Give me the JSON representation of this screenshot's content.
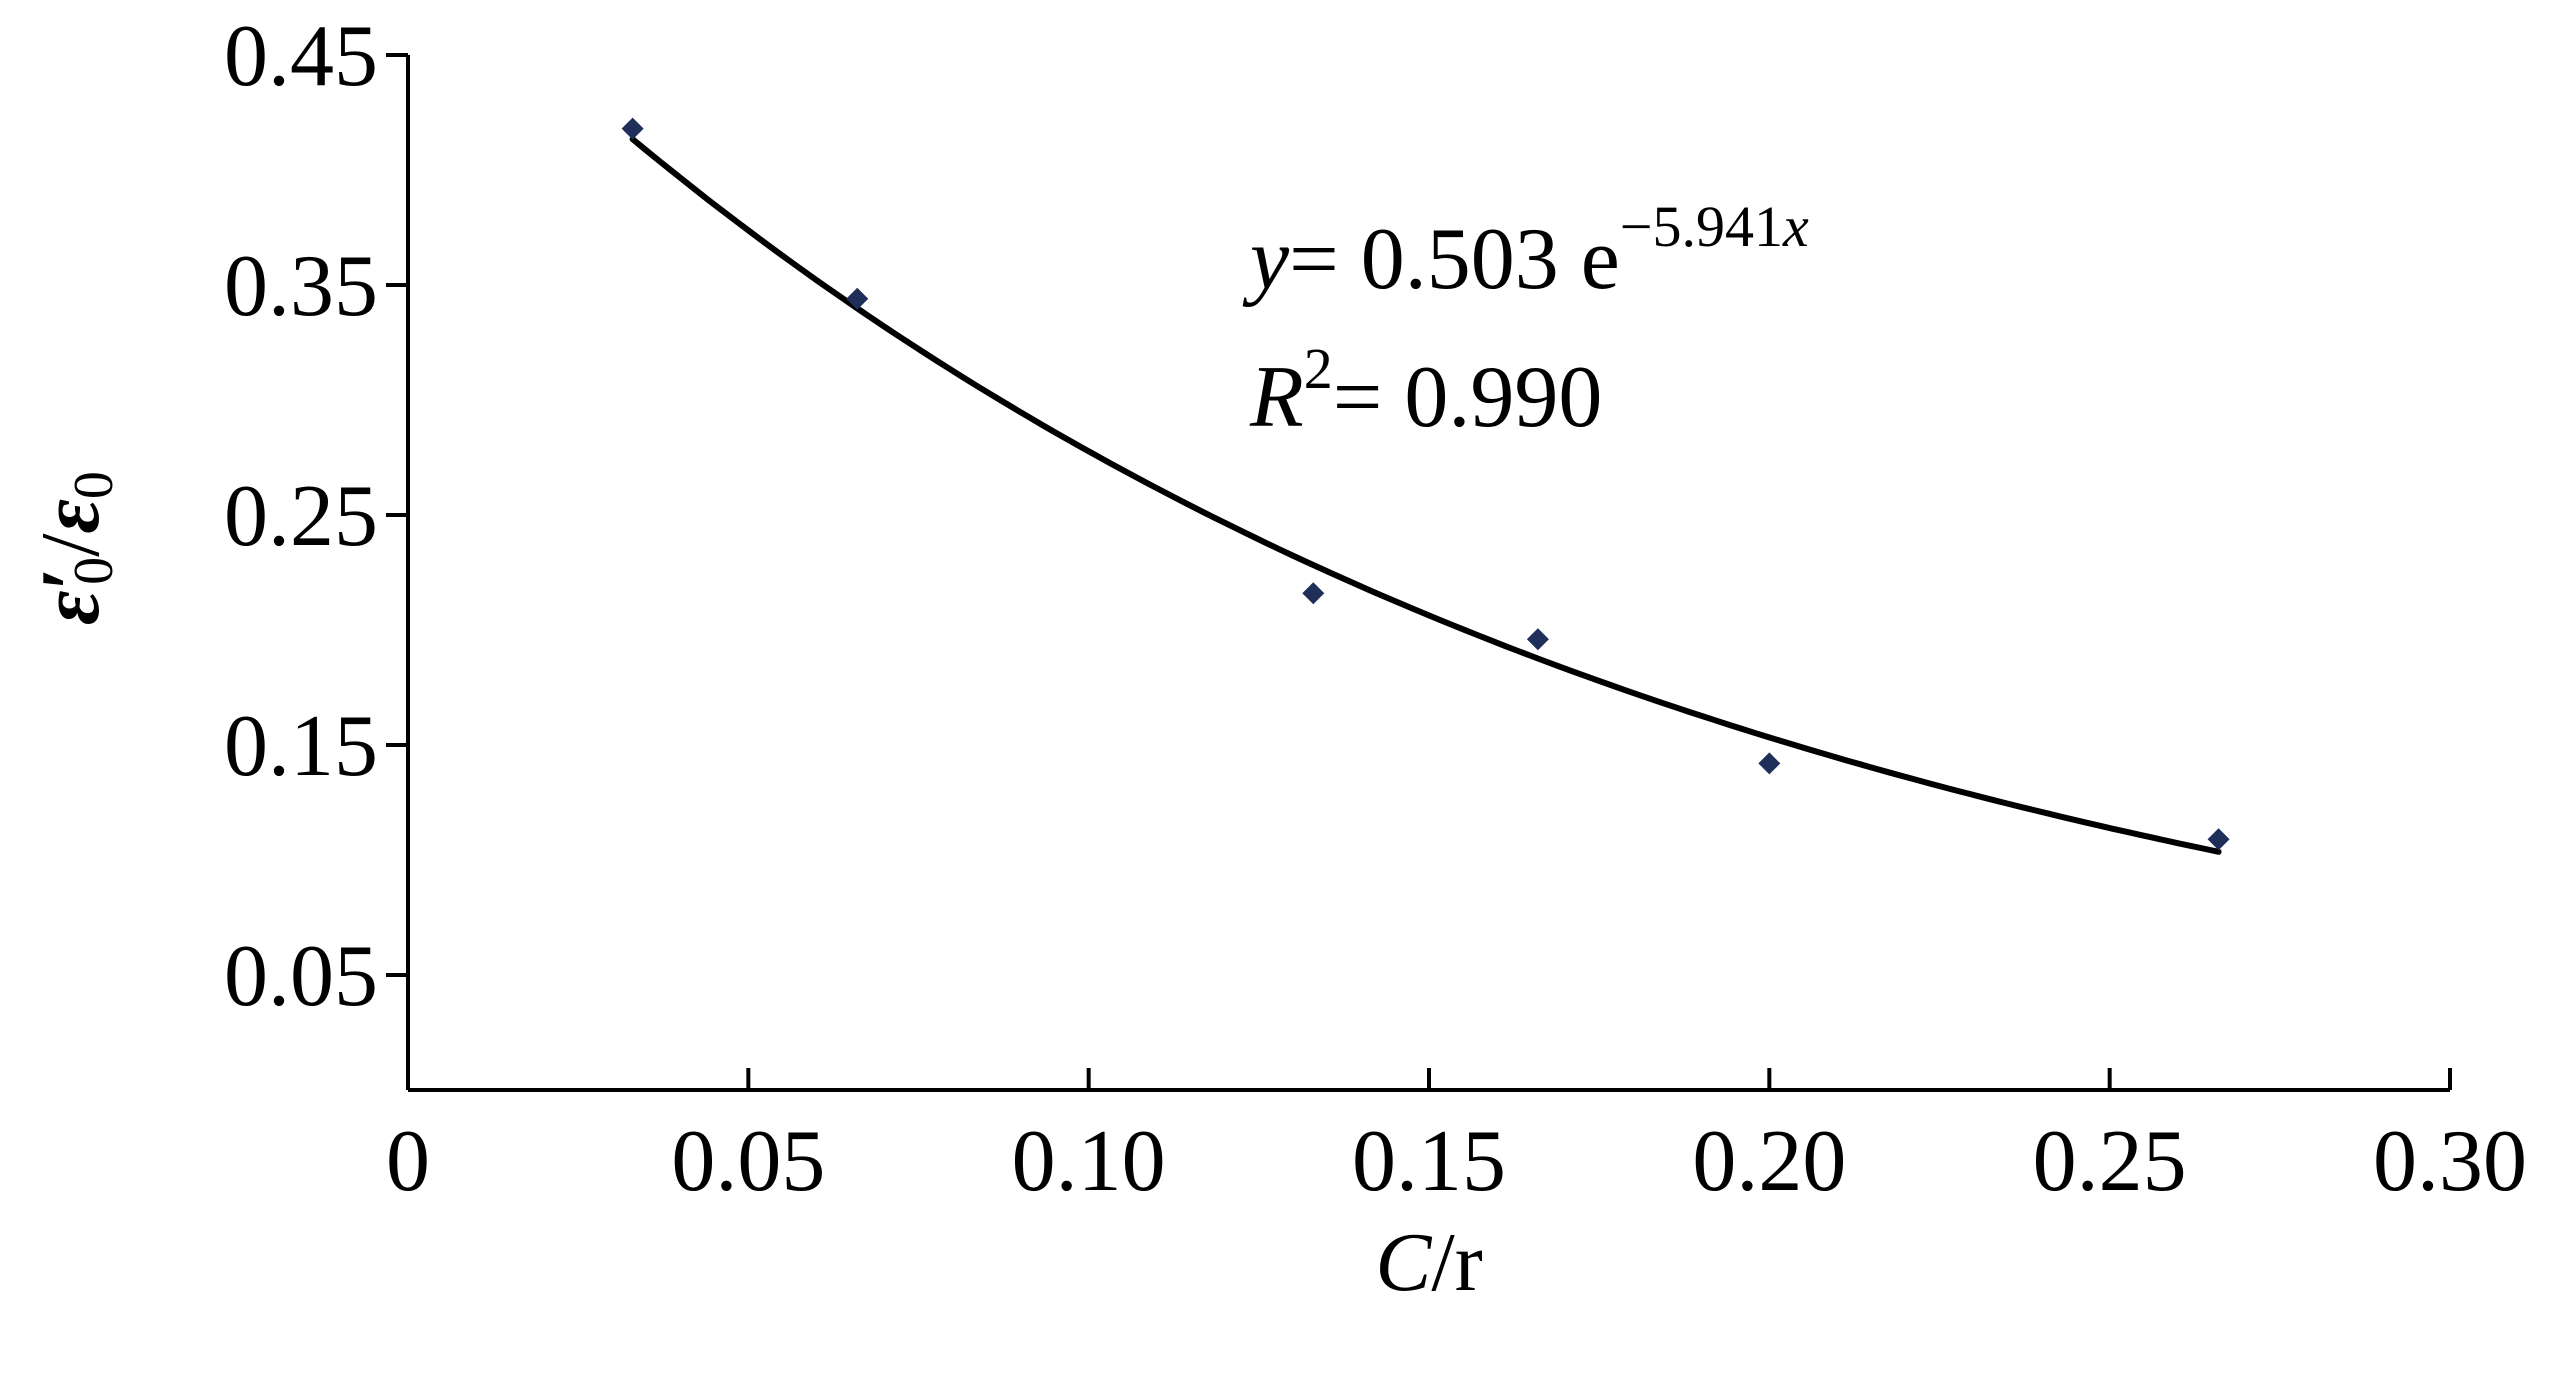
{
  "chart_data": {
    "type": "scatter",
    "xlabel": "C/r",
    "xlabel_italic": "C",
    "xlabel_rest": "/r",
    "ylabel_base": "ε",
    "ylabel_prime": "′",
    "ylabel_sub": "0",
    "ylabel_sep": "/",
    "xlim": [
      0,
      0.3
    ],
    "ylim": [
      0,
      0.45
    ],
    "xticks": [
      0,
      0.05,
      0.1,
      0.15,
      0.2,
      0.25,
      0.3
    ],
    "xtick_labels": [
      "0",
      "0.05",
      "0.10",
      "0.15",
      "0.20",
      "0.25",
      "0.30"
    ],
    "yticks": [
      0.05,
      0.15,
      0.25,
      0.35,
      0.45
    ],
    "ytick_labels": [
      "0.05",
      "0.15",
      "0.25",
      "0.35",
      "0.45"
    ],
    "points": {
      "x": [
        0.033,
        0.066,
        0.133,
        0.166,
        0.2,
        0.266
      ],
      "y": [
        0.418,
        0.344,
        0.216,
        0.196,
        0.142,
        0.109
      ],
      "color": "#1f2f5a"
    },
    "fit": {
      "a": 0.503,
      "b": -5.941,
      "x_range": [
        0.033,
        0.266
      ],
      "color": "#000000"
    },
    "annotation": {
      "eq_y": "y",
      "eq_rest": "= 0.503 e",
      "eq_exp": "−5.941",
      "eq_exp_x": "x",
      "r2_R": "R",
      "r2_sup": "2",
      "r2_rest": "= 0.990"
    },
    "grid": false
  }
}
